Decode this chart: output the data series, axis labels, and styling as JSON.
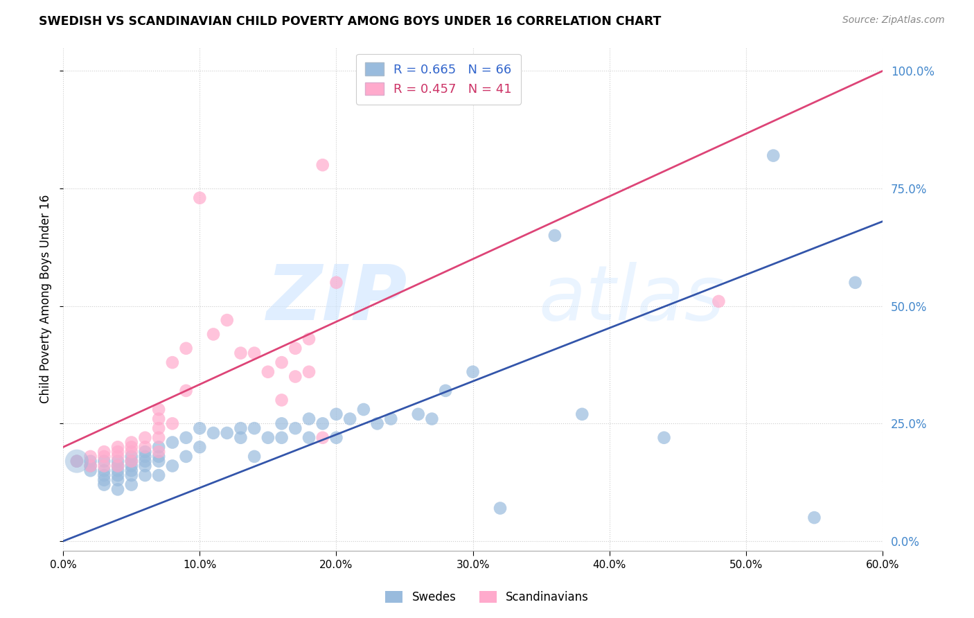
{
  "title": "SWEDISH VS SCANDINAVIAN CHILD POVERTY AMONG BOYS UNDER 16 CORRELATION CHART",
  "source": "Source: ZipAtlas.com",
  "ylabel": "Child Poverty Among Boys Under 16",
  "xlim": [
    0,
    0.6
  ],
  "ylim": [
    -0.02,
    1.05
  ],
  "blue_color": "#99bbdd",
  "pink_color": "#ffaacc",
  "blue_line_color": "#3355aa",
  "pink_line_color": "#dd4477",
  "blue_r": "0.665",
  "blue_n": "66",
  "pink_r": "0.457",
  "pink_n": "41",
  "swedes_x": [
    0.01,
    0.02,
    0.02,
    0.02,
    0.03,
    0.03,
    0.03,
    0.03,
    0.03,
    0.04,
    0.04,
    0.04,
    0.04,
    0.04,
    0.04,
    0.05,
    0.05,
    0.05,
    0.05,
    0.05,
    0.05,
    0.06,
    0.06,
    0.06,
    0.06,
    0.06,
    0.07,
    0.07,
    0.07,
    0.07,
    0.08,
    0.08,
    0.09,
    0.09,
    0.1,
    0.1,
    0.11,
    0.12,
    0.13,
    0.13,
    0.14,
    0.14,
    0.15,
    0.16,
    0.16,
    0.17,
    0.18,
    0.18,
    0.19,
    0.2,
    0.2,
    0.21,
    0.22,
    0.23,
    0.24,
    0.26,
    0.27,
    0.28,
    0.3,
    0.32,
    0.36,
    0.38,
    0.44,
    0.52,
    0.55,
    0.58
  ],
  "swedes_y": [
    0.17,
    0.17,
    0.16,
    0.15,
    0.17,
    0.15,
    0.14,
    0.13,
    0.12,
    0.17,
    0.16,
    0.15,
    0.14,
    0.13,
    0.11,
    0.18,
    0.17,
    0.16,
    0.15,
    0.14,
    0.12,
    0.19,
    0.18,
    0.17,
    0.16,
    0.14,
    0.2,
    0.18,
    0.17,
    0.14,
    0.21,
    0.16,
    0.22,
    0.18,
    0.24,
    0.2,
    0.23,
    0.23,
    0.24,
    0.22,
    0.24,
    0.18,
    0.22,
    0.25,
    0.22,
    0.24,
    0.26,
    0.22,
    0.25,
    0.27,
    0.22,
    0.26,
    0.28,
    0.25,
    0.26,
    0.27,
    0.26,
    0.32,
    0.36,
    0.07,
    0.65,
    0.27,
    0.22,
    0.82,
    0.05,
    0.55
  ],
  "scands_x": [
    0.01,
    0.02,
    0.02,
    0.03,
    0.03,
    0.03,
    0.04,
    0.04,
    0.04,
    0.04,
    0.05,
    0.05,
    0.05,
    0.05,
    0.06,
    0.06,
    0.07,
    0.07,
    0.07,
    0.07,
    0.07,
    0.08,
    0.08,
    0.09,
    0.09,
    0.1,
    0.11,
    0.12,
    0.13,
    0.14,
    0.15,
    0.16,
    0.16,
    0.17,
    0.17,
    0.18,
    0.18,
    0.19,
    0.19,
    0.48,
    0.2
  ],
  "scands_y": [
    0.17,
    0.18,
    0.16,
    0.19,
    0.18,
    0.16,
    0.2,
    0.19,
    0.18,
    0.16,
    0.21,
    0.2,
    0.19,
    0.17,
    0.22,
    0.2,
    0.28,
    0.26,
    0.24,
    0.22,
    0.19,
    0.38,
    0.25,
    0.41,
    0.32,
    0.73,
    0.44,
    0.47,
    0.4,
    0.4,
    0.36,
    0.38,
    0.3,
    0.41,
    0.35,
    0.43,
    0.36,
    0.22,
    0.8,
    0.51,
    0.55
  ],
  "blue_line_x0": 0.0,
  "blue_line_x1": 0.6,
  "blue_line_y0": 0.0,
  "blue_line_y1": 0.68,
  "pink_line_x0": 0.0,
  "pink_line_x1": 0.6,
  "pink_line_y0": 0.2,
  "pink_line_y1": 1.0
}
